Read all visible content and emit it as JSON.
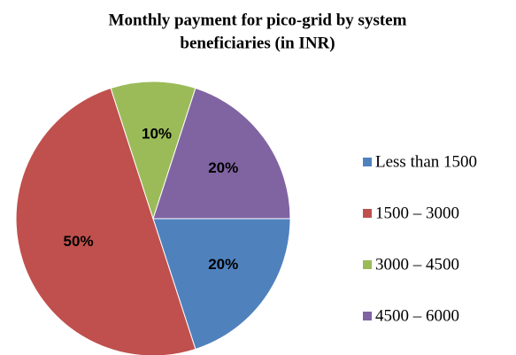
{
  "chart_data": {
    "type": "pie",
    "title": [
      "Monthly payment for pico-grid by system",
      "beneficiaries (in INR)"
    ],
    "categories": [
      "Less than 1500",
      "1500 – 3000",
      "3000 – 4500",
      "4500 – 6000"
    ],
    "values": [
      20,
      50,
      10,
      20
    ],
    "value_labels": [
      "20%",
      "50%",
      "10%",
      "20%"
    ],
    "colors": [
      "#4f81bd",
      "#c0504d",
      "#9bbb59",
      "#8064a2"
    ],
    "legend": "right"
  }
}
